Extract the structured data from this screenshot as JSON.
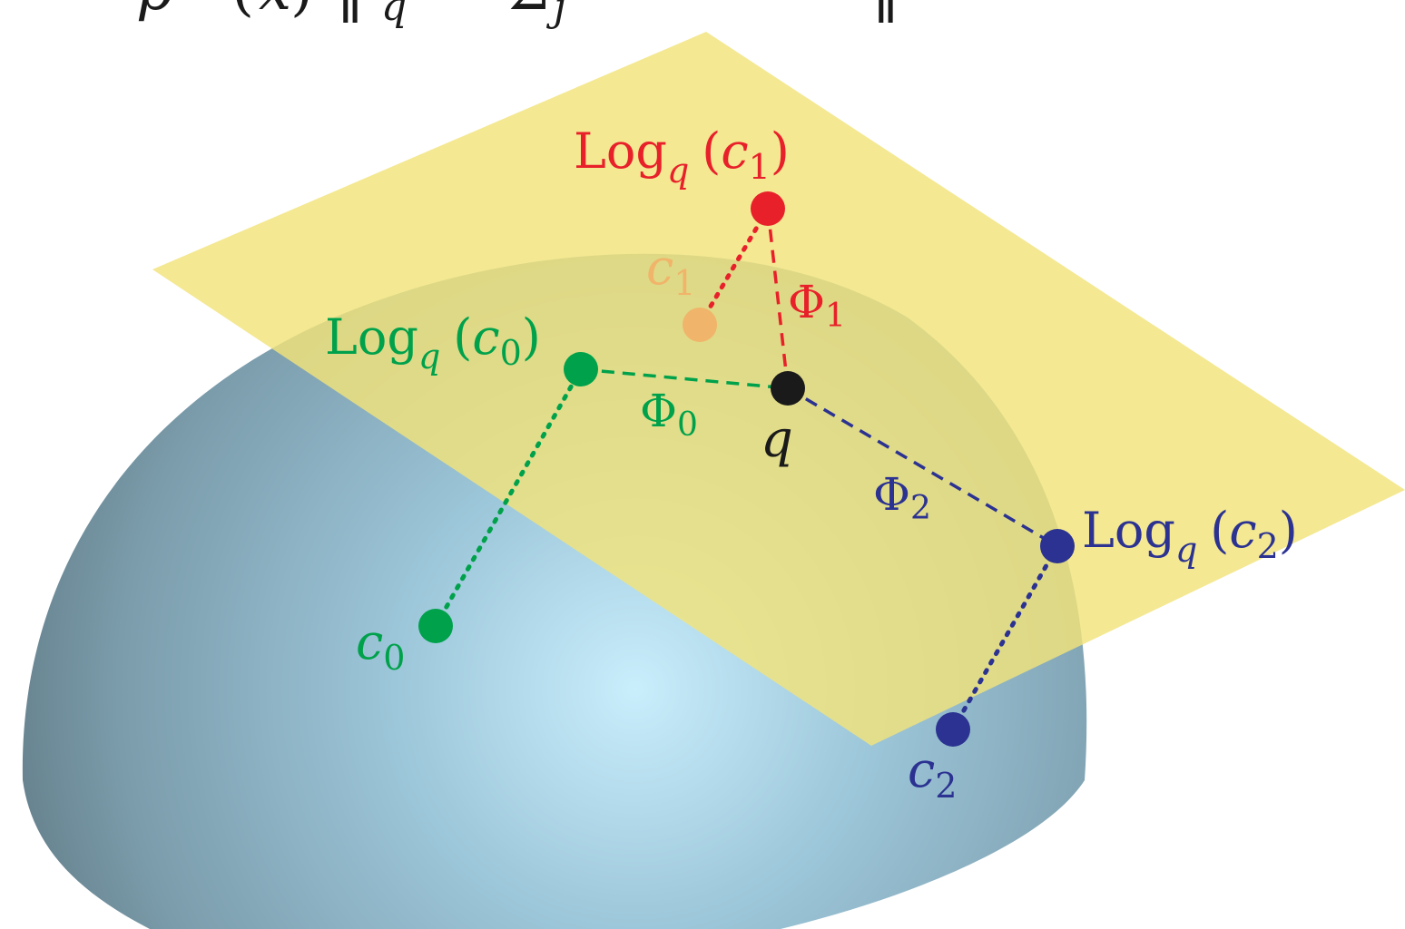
{
  "header_formula": {
    "text": "p = arg min(x) ‖ Log_q(x) − Σ_j ... ‖"
  },
  "colors": {
    "plane": "#f2e78e",
    "sphere_center": "#c6ecfb",
    "sphere_edge": "#5e7782",
    "red": "#e8202a",
    "orange": "#f0b46a",
    "green": "#00a14b",
    "navy": "#2b3291",
    "black": "#1a1a1a"
  },
  "labels": {
    "log_c1": {
      "op": "Log",
      "sub": "q",
      "open": "(",
      "var": "c",
      "index": "1",
      "close": ")"
    },
    "log_c0": {
      "op": "Log",
      "sub": "q",
      "open": "(",
      "var": "c",
      "index": "0",
      "close": ")"
    },
    "log_c2": {
      "op": "Log",
      "sub": "q",
      "open": "(",
      "var": "c",
      "index": "2",
      "close": ")"
    },
    "c0": {
      "var": "c",
      "index": "0"
    },
    "c1": {
      "var": "c",
      "index": "1"
    },
    "c2": {
      "var": "c",
      "index": "2"
    },
    "phi0": {
      "sym": "Φ",
      "index": "0"
    },
    "phi1": {
      "sym": "Φ",
      "index": "1"
    },
    "phi2": {
      "sym": "Φ",
      "index": "2"
    },
    "q": "q"
  }
}
